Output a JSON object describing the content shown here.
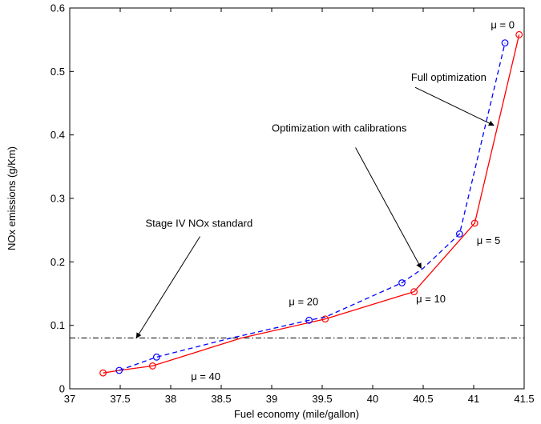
{
  "chart_data": {
    "type": "line",
    "title": "",
    "xlabel": "Fuel economy (mile/gallon)",
    "ylabel": "NOx emissions (g/Km)",
    "xlim": [
      37,
      41.5
    ],
    "ylim": [
      0,
      0.6
    ],
    "xticks": [
      "37",
      "37.5",
      "38",
      "38.5",
      "39",
      "39.5",
      "40",
      "40.5",
      "41",
      "41.5"
    ],
    "yticks": [
      "0",
      "0.1",
      "0.2",
      "0.3",
      "0.4",
      "0.5",
      "0.6"
    ],
    "grid": false,
    "legend": "none",
    "series": [
      {
        "color": "#ff0000",
        "line_style": "solid",
        "marker": "circle",
        "x": [
          37.33,
          37.49,
          37.82,
          38.7,
          39.53,
          40.41,
          41.01,
          41.45
        ],
        "y": [
          0.025,
          0.029,
          0.036,
          0.08,
          0.11,
          0.153,
          0.261,
          0.558
        ],
        "marker_mask": [
          true,
          false,
          true,
          false,
          true,
          true,
          true,
          true
        ]
      },
      {
        "color": "#0000ff",
        "line_style": "dashed",
        "marker": "circle",
        "x": [
          37.49,
          37.86,
          38.6,
          39.37,
          39.53,
          40.29,
          40.5,
          40.86,
          41.31
        ],
        "y": [
          0.029,
          0.05,
          0.08,
          0.108,
          0.113,
          0.167,
          0.19,
          0.244,
          0.545
        ],
        "marker_mask": [
          true,
          true,
          false,
          true,
          false,
          true,
          false,
          true,
          true
        ]
      }
    ],
    "reference_line": {
      "y": 0.08,
      "line_style": "dashdot",
      "color": "#000000"
    },
    "annotations": [
      {
        "text": "Full optimization",
        "x": 40.38,
        "y": 0.485,
        "arrow_from": [
          40.42,
          0.475
        ],
        "arrow_to": [
          41.2,
          0.415
        ]
      },
      {
        "text": "Optimization with calibrations",
        "x": 39.0,
        "y": 0.405,
        "arrow_from": [
          39.83,
          0.38
        ],
        "arrow_to": [
          40.48,
          0.19
        ]
      },
      {
        "text": "Stage IV NOx standard",
        "x": 37.75,
        "y": 0.255,
        "arrow_from": [
          38.29,
          0.24
        ],
        "arrow_to": [
          37.66,
          0.08
        ]
      },
      {
        "text": "μ = 0",
        "x": 41.17,
        "y": 0.568
      },
      {
        "text": "μ = 5",
        "x": 41.03,
        "y": 0.228
      },
      {
        "text": "μ = 10",
        "x": 40.43,
        "y": 0.136
      },
      {
        "text": "μ = 20",
        "x": 39.17,
        "y": 0.132
      },
      {
        "text": "μ = 40",
        "x": 38.2,
        "y": 0.014
      }
    ]
  }
}
